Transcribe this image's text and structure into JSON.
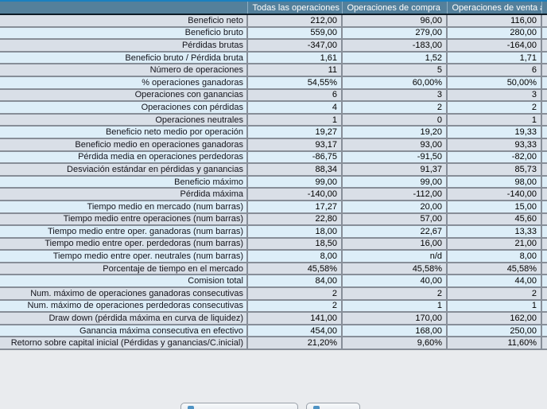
{
  "colors": {
    "top_line": "#1a80c0",
    "header_bg": "#54809b",
    "header_text": "#ffffff",
    "row_gray": "#d9dfe7",
    "row_blue": "#ddeef8",
    "grid_line": "#878e98"
  },
  "table": {
    "header": {
      "label_column": "",
      "columns": [
        "Todas las operaciones",
        "Operaciones de compra",
        "Operaciones de venta a"
      ]
    },
    "rows": [
      {
        "label": "Beneficio neto",
        "values": [
          "212,00",
          "96,00",
          "116,00"
        ]
      },
      {
        "label": "Beneficio bruto",
        "values": [
          "559,00",
          "279,00",
          "280,00"
        ]
      },
      {
        "label": "Pérdidas brutas",
        "values": [
          "-347,00",
          "-183,00",
          "-164,00"
        ]
      },
      {
        "label": "Beneficio bruto / Pérdida bruta",
        "values": [
          "1,61",
          "1,52",
          "1,71"
        ]
      },
      {
        "label": "Número de operaciones",
        "values": [
          "11",
          "5",
          "6"
        ]
      },
      {
        "label": "% operaciones ganadoras",
        "values": [
          "54,55%",
          "60,00%",
          "50,00%"
        ]
      },
      {
        "label": "Operaciones con ganancias",
        "values": [
          "6",
          "3",
          "3"
        ]
      },
      {
        "label": "Operaciones con pérdidas",
        "values": [
          "4",
          "2",
          "2"
        ]
      },
      {
        "label": "Operaciones neutrales",
        "values": [
          "1",
          "0",
          "1"
        ]
      },
      {
        "label": "Beneficio neto medio por operación",
        "values": [
          "19,27",
          "19,20",
          "19,33"
        ]
      },
      {
        "label": "Beneficio medio en operaciones ganadoras",
        "values": [
          "93,17",
          "93,00",
          "93,33"
        ]
      },
      {
        "label": "Pérdida media en operaciones perdedoras",
        "values": [
          "-86,75",
          "-91,50",
          "-82,00"
        ]
      },
      {
        "label": "Desviación estándar en pérdidas y ganancias",
        "values": [
          "88,34",
          "91,37",
          "85,73"
        ]
      },
      {
        "label": "Beneficio máximo",
        "values": [
          "99,00",
          "99,00",
          "98,00"
        ]
      },
      {
        "label": "Pérdida máxima",
        "values": [
          "-140,00",
          "-112,00",
          "-140,00"
        ]
      },
      {
        "label": "Tiempo medio en mercado (num barras)",
        "values": [
          "17,27",
          "20,00",
          "15,00"
        ]
      },
      {
        "label": "Tiempo medio entre operaciones (num barras)",
        "values": [
          "22,80",
          "57,00",
          "45,60"
        ]
      },
      {
        "label": "Tiempo medio entre oper. ganadoras (num barras)",
        "values": [
          "18,00",
          "22,67",
          "13,33"
        ]
      },
      {
        "label": "Tiempo medio entre oper. perdedoras (num barras)",
        "values": [
          "18,50",
          "16,00",
          "21,00"
        ]
      },
      {
        "label": "Tiempo medio entre oper. neutrales (num barras)",
        "values": [
          "8,00",
          "n/d",
          "8,00"
        ]
      },
      {
        "label": "Porcentaje de tiempo en el mercado",
        "values": [
          "45,58%",
          "45,58%",
          "45,58%"
        ]
      },
      {
        "label": "Comision total",
        "values": [
          "84,00",
          "40,00",
          "44,00"
        ]
      },
      {
        "label": "Num. máximo de operaciones ganadoras consecutivas",
        "values": [
          "2",
          "2",
          "2"
        ]
      },
      {
        "label": "Num. máximo de operaciones perdedoras consecutivas",
        "values": [
          "2",
          "1",
          "1"
        ]
      },
      {
        "label": "Draw down (pérdida máxima en curva de liquidez)",
        "values": [
          "141,00",
          "170,00",
          "162,00"
        ]
      },
      {
        "label": "Ganancia máxima consecutiva en efectivo",
        "values": [
          "454,00",
          "168,00",
          "250,00"
        ]
      },
      {
        "label": "Retorno sobre capital inicial (Pérdidas y ganancias/C.inicial)",
        "values": [
          "21,20%",
          "9,60%",
          "11,60%"
        ]
      }
    ]
  },
  "footer": {
    "visible_buttons": 2
  }
}
